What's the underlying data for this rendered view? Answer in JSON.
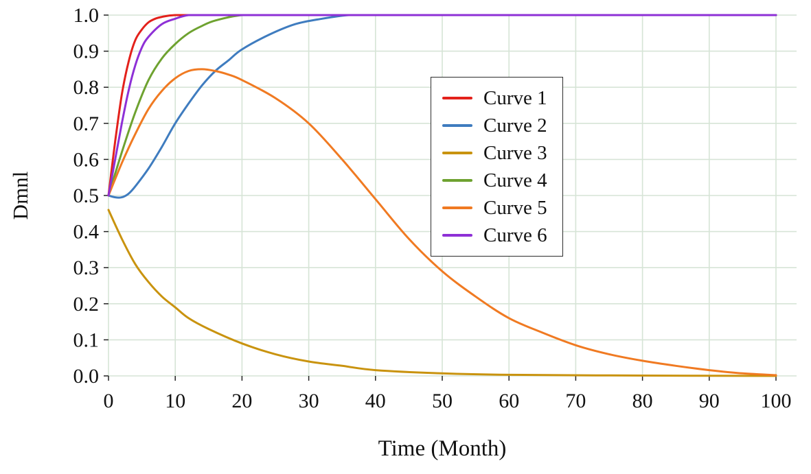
{
  "chart_data": {
    "type": "line",
    "title": "",
    "xlabel": "Time (Month)",
    "ylabel": "Dmnl",
    "xlim": [
      0,
      100
    ],
    "ylim": [
      0.0,
      1.0
    ],
    "xticks": [
      0,
      10,
      20,
      30,
      40,
      50,
      60,
      70,
      80,
      90,
      100
    ],
    "xtick_labels": [
      "0",
      "10",
      "20",
      "30",
      "40",
      "50",
      "60",
      "70",
      "80",
      "90",
      "100"
    ],
    "yticks": [
      0.0,
      0.1,
      0.2,
      0.3,
      0.4,
      0.5,
      0.6,
      0.7,
      0.8,
      0.9,
      1.0
    ],
    "ytick_labels": [
      "0.0",
      "0.1",
      "0.2",
      "0.3",
      "0.4",
      "0.5",
      "0.6",
      "0.7",
      "0.8",
      "0.9",
      "1.0"
    ],
    "grid": true,
    "legend_position": "upper-center-right",
    "series": [
      {
        "name": "Curve 1",
        "color": "#e3211b",
        "x": [
          0,
          1,
          2,
          3,
          4,
          5,
          6,
          7,
          8,
          10,
          15,
          20,
          30,
          50,
          100
        ],
        "y": [
          0.5,
          0.65,
          0.78,
          0.87,
          0.93,
          0.96,
          0.98,
          0.99,
          0.995,
          1.0,
          1.0,
          1.0,
          1.0,
          1.0,
          1.0
        ]
      },
      {
        "name": "Curve 2",
        "color": "#3f7cbf",
        "x": [
          0,
          1,
          2,
          3,
          4,
          6,
          8,
          10,
          12,
          14,
          16,
          18,
          20,
          24,
          28,
          32,
          36,
          40,
          60,
          100
        ],
        "y": [
          0.5,
          0.495,
          0.495,
          0.505,
          0.525,
          0.575,
          0.635,
          0.7,
          0.755,
          0.805,
          0.845,
          0.875,
          0.905,
          0.945,
          0.975,
          0.99,
          1.0,
          1.0,
          1.0,
          1.0
        ]
      },
      {
        "name": "Curve 3",
        "color": "#c9930f",
        "x": [
          0,
          2,
          4,
          6,
          8,
          10,
          12,
          15,
          20,
          25,
          30,
          35,
          40,
          50,
          60,
          80,
          100
        ],
        "y": [
          0.46,
          0.38,
          0.31,
          0.26,
          0.22,
          0.19,
          0.16,
          0.13,
          0.09,
          0.06,
          0.04,
          0.028,
          0.016,
          0.007,
          0.003,
          0.001,
          0.0
        ]
      },
      {
        "name": "Curve 4",
        "color": "#6ea230",
        "x": [
          0,
          2,
          4,
          6,
          8,
          10,
          12,
          14,
          16,
          20,
          25,
          40,
          100
        ],
        "y": [
          0.5,
          0.62,
          0.73,
          0.82,
          0.88,
          0.92,
          0.95,
          0.97,
          0.985,
          1.0,
          1.0,
          1.0,
          1.0
        ]
      },
      {
        "name": "Curve 5",
        "color": "#f07a22",
        "x": [
          0,
          2,
          4,
          6,
          8,
          10,
          12,
          14,
          16,
          18,
          20,
          25,
          30,
          35,
          40,
          45,
          50,
          55,
          60,
          65,
          70,
          75,
          80,
          85,
          90,
          95,
          100
        ],
        "y": [
          0.5,
          0.59,
          0.67,
          0.74,
          0.79,
          0.825,
          0.845,
          0.85,
          0.845,
          0.835,
          0.82,
          0.77,
          0.7,
          0.6,
          0.49,
          0.38,
          0.29,
          0.22,
          0.16,
          0.12,
          0.085,
          0.06,
          0.042,
          0.028,
          0.016,
          0.007,
          0.002
        ]
      },
      {
        "name": "Curve 6",
        "color": "#8e30d6",
        "x": [
          0,
          1,
          2,
          3,
          4,
          5,
          6,
          8,
          10,
          12,
          15,
          20,
          50,
          100
        ],
        "y": [
          0.5,
          0.6,
          0.7,
          0.79,
          0.86,
          0.91,
          0.94,
          0.975,
          0.99,
          1.0,
          1.0,
          1.0,
          1.0,
          1.0
        ]
      }
    ]
  },
  "style": {
    "grid_color": "#d6e4d6",
    "tick_color": "#222222",
    "text_color": "#111111",
    "background": "#ffffff",
    "line_width": 3
  }
}
